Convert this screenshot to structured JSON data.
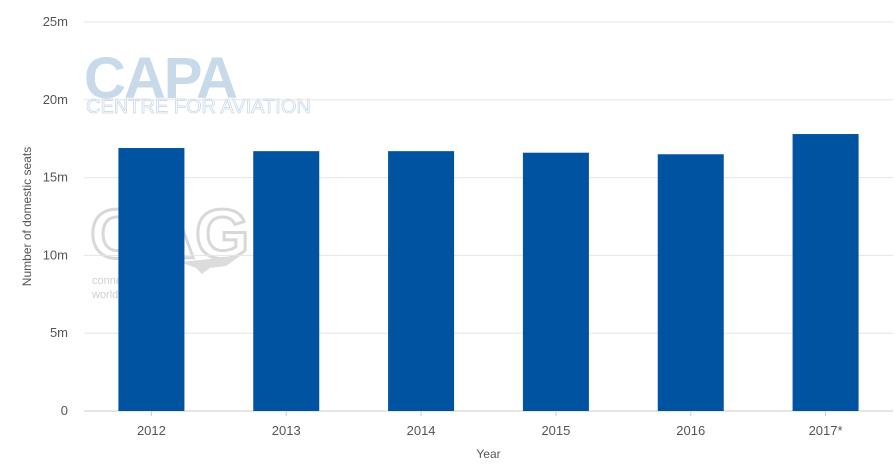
{
  "chart_data": {
    "type": "bar",
    "categories": [
      "2012",
      "2013",
      "2014",
      "2015",
      "2016",
      "2017*"
    ],
    "values": [
      16.9,
      16.7,
      16.7,
      16.6,
      16.5,
      17.8
    ],
    "xlabel": "Year",
    "ylabel": "Number of domestic seats",
    "ylim": [
      0,
      25
    ],
    "yticks": [
      0,
      5,
      10,
      15,
      20,
      25
    ],
    "ytick_labels": [
      "0",
      "5m",
      "10m",
      "15m",
      "20m",
      "25m"
    ],
    "grid": true,
    "legend": "none",
    "bar_color": "#0053a0",
    "grid_color": "#e6e6e6"
  },
  "watermarks": {
    "capa_logo": "CAPA",
    "capa_subtitle": "CENTRE FOR AVIATION",
    "oag_logo": "OAG",
    "oag_tagline_1": "connecting the",
    "oag_tagline_2": "world of travel"
  }
}
